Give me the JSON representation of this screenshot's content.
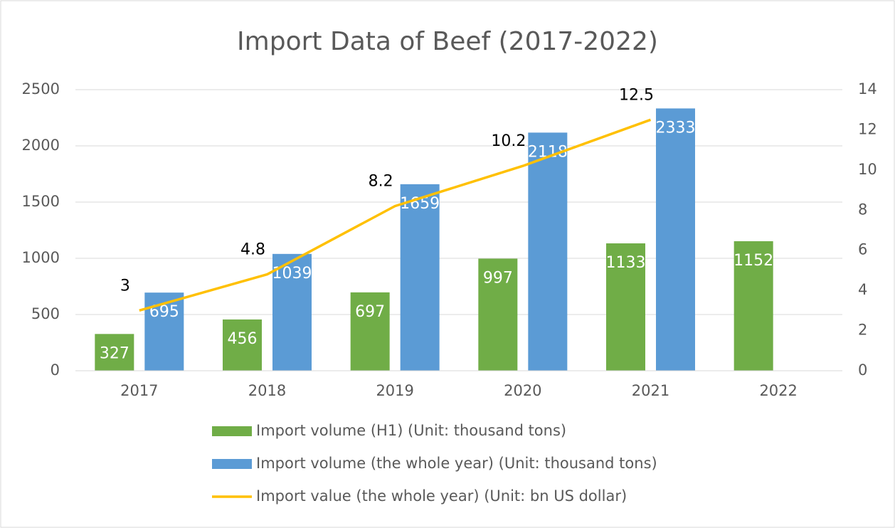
{
  "chart_data": {
    "type": "bar",
    "title": "Import Data of Beef (2017-2022)",
    "categories": [
      "2017",
      "2018",
      "2019",
      "2020",
      "2021",
      "2022"
    ],
    "series": [
      {
        "name": "Import volume (H1) (Unit: thousand tons)",
        "type": "bar",
        "color": "#70ad47",
        "values": [
          327,
          456,
          697,
          997,
          1133,
          1152
        ]
      },
      {
        "name": "Import volume (the whole year) (Unit: thousand tons)",
        "type": "bar",
        "color": "#5b9bd5",
        "values": [
          695,
          1039,
          1659,
          2118,
          2333,
          null
        ]
      },
      {
        "name": "Import value (the whole year) (Unit: bn US dollar)",
        "type": "line",
        "axis": "y2",
        "color": "#ffc000",
        "values": [
          3,
          4.8,
          8.2,
          10.2,
          12.5,
          null
        ]
      }
    ],
    "ylim": [
      0,
      2500
    ],
    "yticks": [
      0,
      500,
      1000,
      1500,
      2000,
      2500
    ],
    "y2lim": [
      0,
      14
    ],
    "y2ticks": [
      0,
      2,
      4,
      6,
      8,
      10,
      12,
      14
    ],
    "grid": true,
    "legend": "bottom"
  }
}
